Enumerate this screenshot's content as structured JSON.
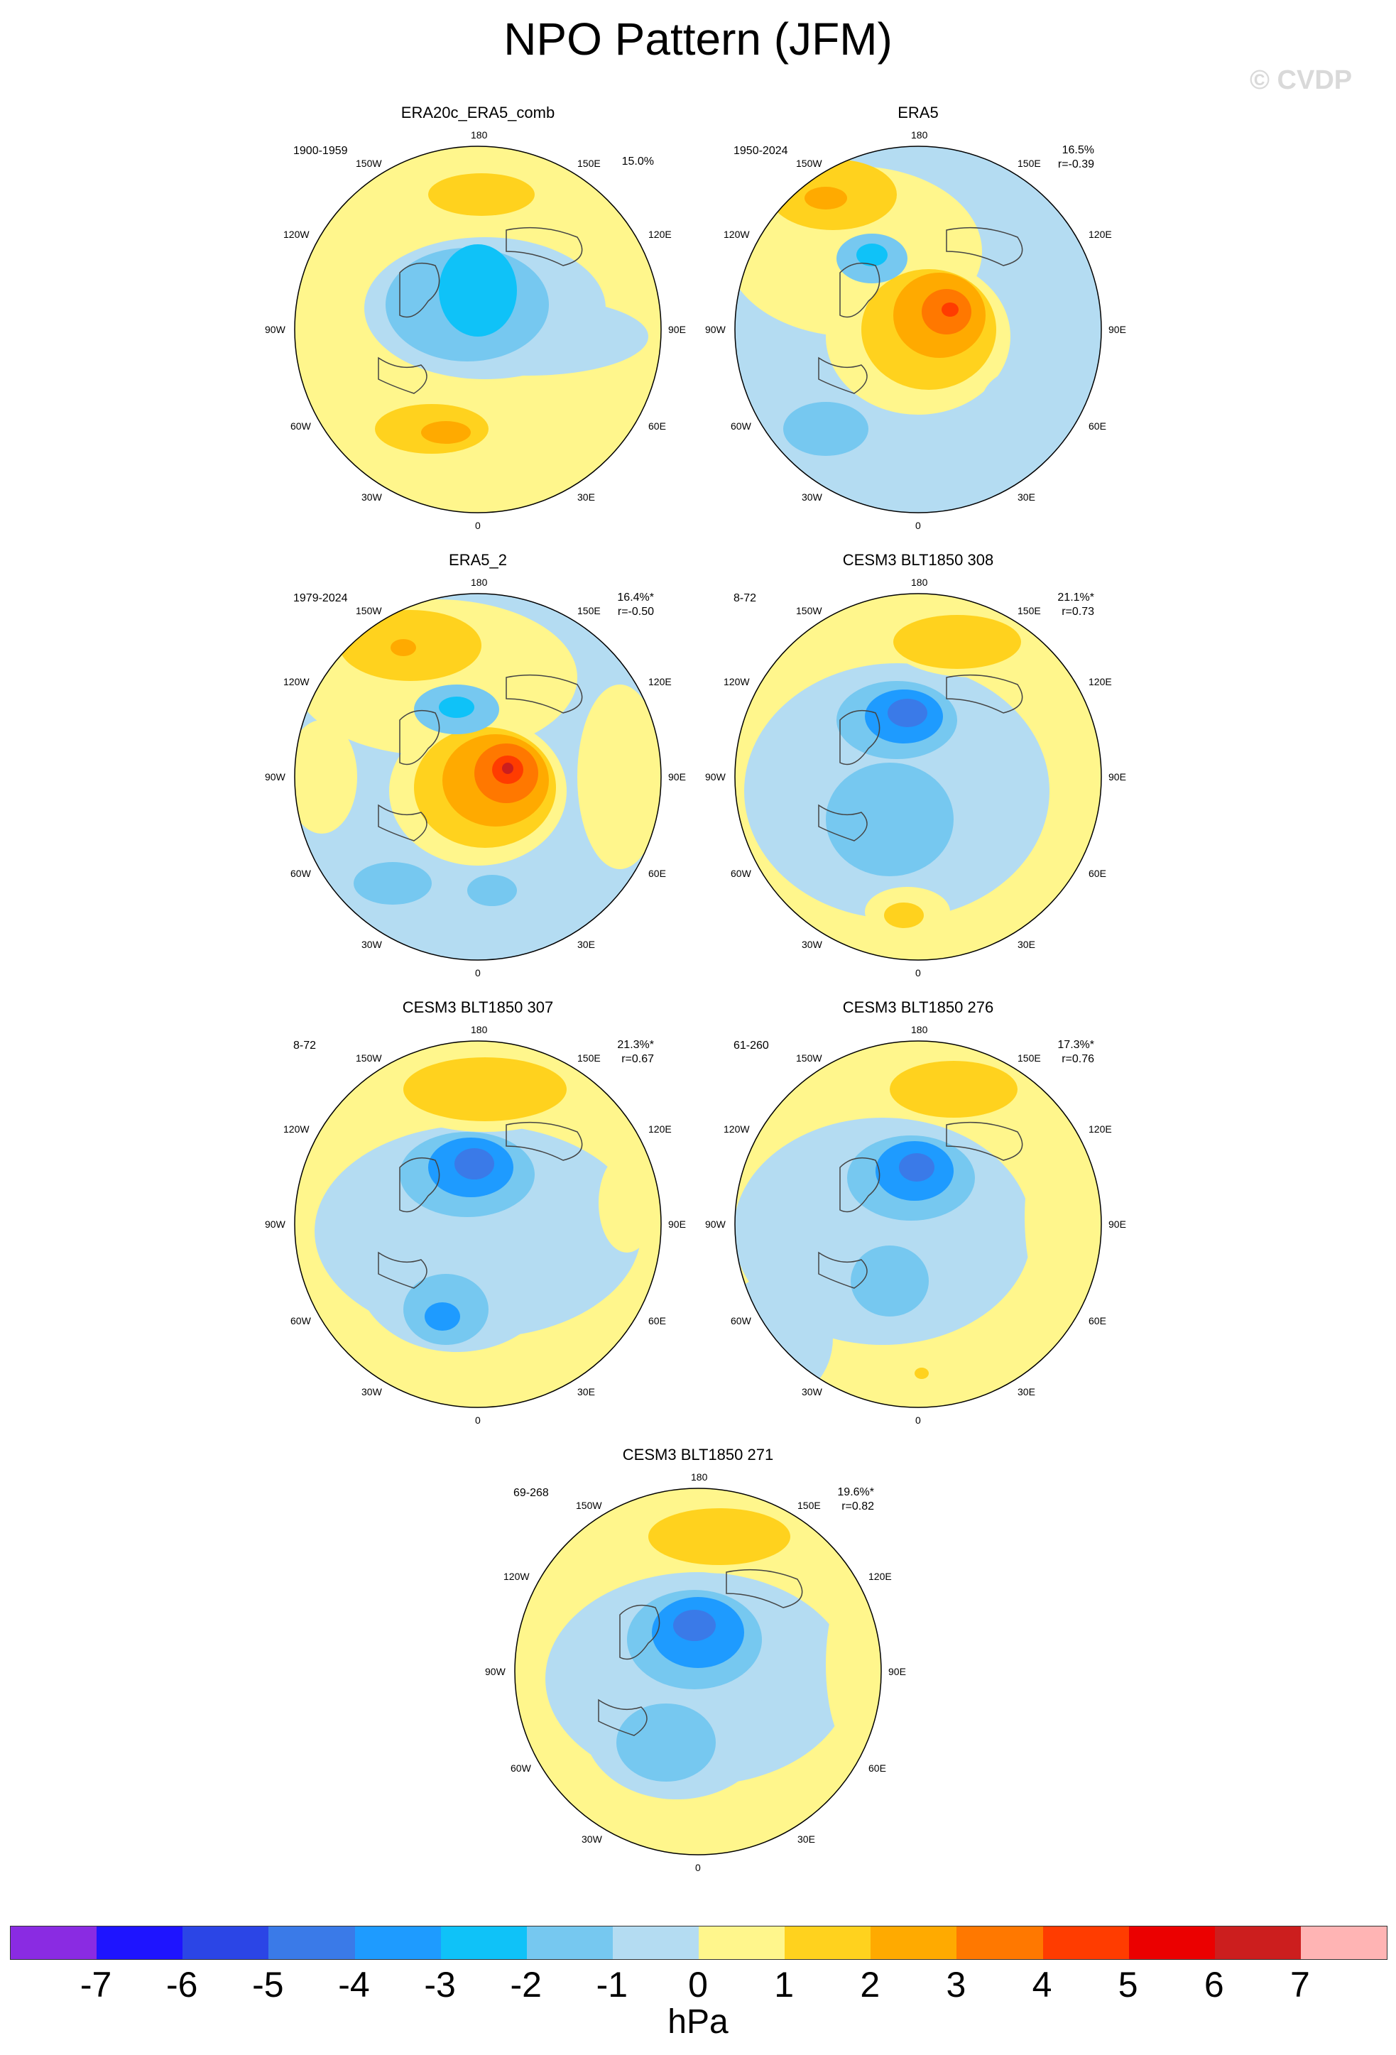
{
  "figure": {
    "title": "NPO Pattern (JFM)",
    "watermark": "© CVDP"
  },
  "lon_labels": [
    "180",
    "150E",
    "120E",
    "90E",
    "60E",
    "30E",
    "0",
    "30W",
    "60W",
    "90W",
    "120W",
    "150W"
  ],
  "panels": [
    {
      "title": "ERA20c_ERA5_comb",
      "period": "1900-1959",
      "pct": "15.0%",
      "r": ""
    },
    {
      "title": "ERA5",
      "period": "1950-2024",
      "pct": "16.5%",
      "r": "r=-0.39"
    },
    {
      "title": "ERA5_2",
      "period": "1979-2024",
      "pct": "16.4%*",
      "r": "r=-0.50"
    },
    {
      "title": "CESM3 BLT1850 308",
      "period": "8-72",
      "pct": "21.1%*",
      "r": "r=0.73"
    },
    {
      "title": "CESM3 BLT1850 307",
      "period": "8-72",
      "pct": "21.3%*",
      "r": "r=0.67"
    },
    {
      "title": "CESM3 BLT1850 276",
      "period": "61-260",
      "pct": "17.3%*",
      "r": "r=0.76"
    },
    {
      "title": "CESM3 BLT1850 271",
      "period": "69-268",
      "pct": "19.6%*",
      "r": "r=0.82"
    }
  ],
  "colorbar": {
    "units": "hPa",
    "ticks": [
      "-7",
      "-6",
      "-5",
      "-4",
      "-3",
      "-2",
      "-1",
      "0",
      "1",
      "2",
      "3",
      "4",
      "5",
      "6",
      "7"
    ],
    "colors": [
      "#8a2be2",
      "#1e14ff",
      "#2b45e6",
      "#3a7ae8",
      "#1e9bff",
      "#0fc2f8",
      "#76c8f0",
      "#b4dcf2",
      "#fff68c",
      "#ffd21e",
      "#ffaa00",
      "#ff7800",
      "#ff3c00",
      "#eb0000",
      "#cc1e1e",
      "#ffb4b4"
    ]
  }
}
